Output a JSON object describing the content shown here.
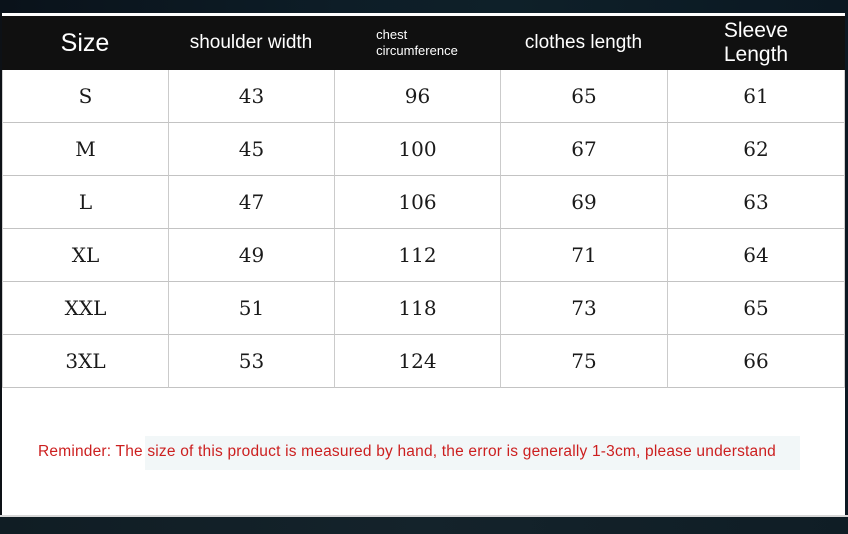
{
  "colors": {
    "top_bar": "#0d1d27",
    "bottom_bar": "#14232b",
    "header_background": "#101010",
    "header_text": "#ffffff",
    "grid_border": "#cbcbcb",
    "reminder_text": "#cc1f1f",
    "cell_background": "#ffffff"
  },
  "header": {
    "size": "Size",
    "shoulder_width": "shoulder width",
    "chest_line1": "chest",
    "chest_line2": "circumference",
    "clothes_length": "clothes length",
    "sleeve_line1": "Sleeve",
    "sleeve_line2": "Length"
  },
  "chart_data": {
    "type": "table",
    "title": "Garment size chart",
    "columns": [
      "Size",
      "shoulder width",
      "chest circumference",
      "clothes length",
      "Sleeve Length"
    ],
    "rows": [
      [
        "S",
        43,
        96,
        65,
        61
      ],
      [
        "M",
        45,
        100,
        67,
        62
      ],
      [
        "L",
        47,
        106,
        69,
        63
      ],
      [
        "XL",
        49,
        112,
        71,
        64
      ],
      [
        "XXL",
        51,
        118,
        73,
        65
      ],
      [
        "3XL",
        53,
        124,
        75,
        66
      ]
    ],
    "note": "Reminder: The size of this product is measured by hand, the error is generally 1-3cm, please understand"
  }
}
